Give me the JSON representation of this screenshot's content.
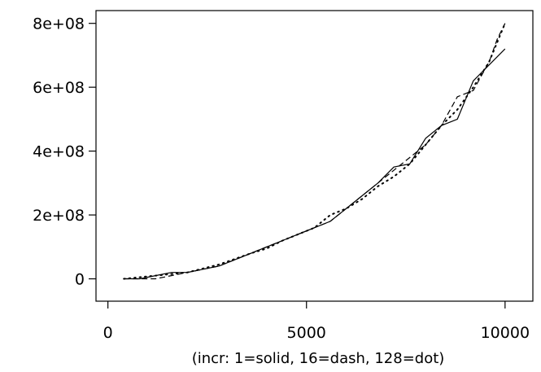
{
  "chart_data": {
    "type": "line",
    "title": "",
    "xlabel": "(incr: 1=solid, 16=dash, 128=dot)",
    "ylabel": "",
    "xlim": [
      -300,
      10700
    ],
    "ylim": [
      -70000000,
      840000000
    ],
    "x_ticks": [
      {
        "value": 0,
        "label": "0"
      },
      {
        "value": 5000,
        "label": "5000"
      },
      {
        "value": 10000,
        "label": "10000"
      }
    ],
    "y_ticks": [
      {
        "value": 0,
        "label": "0"
      },
      {
        "value": 200000000,
        "label": "2e+08"
      },
      {
        "value": 400000000,
        "label": "4e+08"
      },
      {
        "value": 600000000,
        "label": "6e+08"
      },
      {
        "value": 800000000,
        "label": "8e+08"
      }
    ],
    "grid": false,
    "legend": "none",
    "colors": {
      "line": "#000000",
      "axis": "#000000"
    },
    "series": [
      {
        "style": "solid",
        "x": [
          400,
          800,
          1200,
          1600,
          2000,
          2800,
          3600,
          4000,
          4400,
          4800,
          5600,
          6000,
          6400,
          6800,
          7200,
          7600,
          8000,
          8400,
          8800,
          9200,
          9600,
          10000
        ],
        "y": [
          0,
          0,
          10000000,
          20000000,
          20000000,
          40000000,
          80000000,
          100000000,
          120000000,
          140000000,
          180000000,
          220000000,
          260000000,
          300000000,
          350000000,
          360000000,
          440000000,
          480000000,
          500000000,
          620000000,
          670000000,
          720000000
        ]
      },
      {
        "style": "dash",
        "x": [
          400,
          1200,
          2000,
          2800,
          3600,
          4000,
          4400,
          4800,
          5600,
          6000,
          6400,
          6800,
          7200,
          7600,
          8000,
          8400,
          8800,
          9200,
          9600,
          9800,
          10000
        ],
        "y": [
          0,
          0,
          20000000,
          40000000,
          80000000,
          100000000,
          120000000,
          140000000,
          180000000,
          220000000,
          260000000,
          300000000,
          340000000,
          380000000,
          420000000,
          480000000,
          570000000,
          590000000,
          680000000,
          750000000,
          800000000
        ]
      },
      {
        "style": "dot",
        "x": [
          400,
          1200,
          2000,
          2800,
          3600,
          4000,
          4400,
          4800,
          5200,
          5600,
          6000,
          6400,
          6800,
          7200,
          7600,
          8000,
          8400,
          8800,
          9200,
          9600,
          10000
        ],
        "y": [
          0,
          10000000,
          20000000,
          45000000,
          80000000,
          95000000,
          120000000,
          140000000,
          160000000,
          200000000,
          220000000,
          250000000,
          290000000,
          320000000,
          360000000,
          420000000,
          480000000,
          530000000,
          600000000,
          680000000,
          800000000
        ]
      }
    ]
  }
}
